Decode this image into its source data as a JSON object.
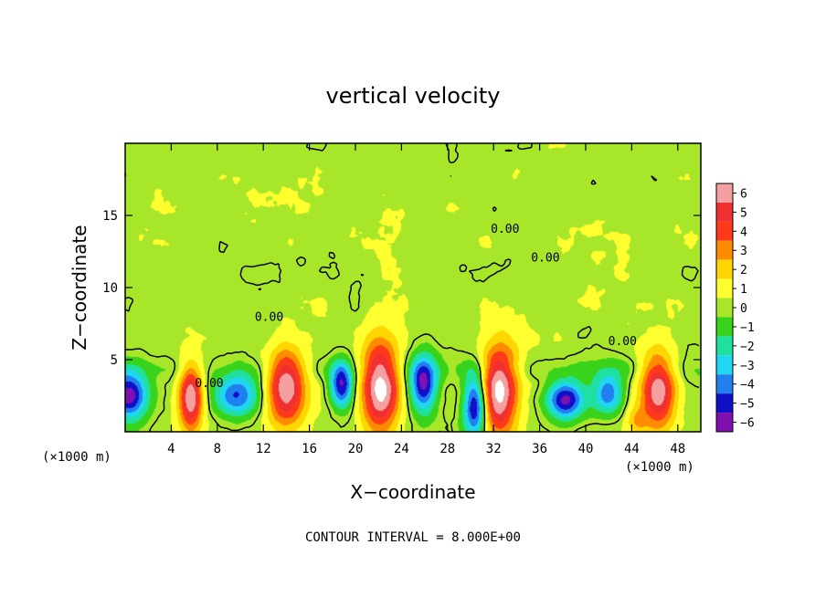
{
  "chart_data": {
    "type": "heatmap",
    "title": "vertical velocity",
    "xlabel": "X−coordinate",
    "ylabel": "Z−coordinate",
    "x_unit_left": "(×1000 m)",
    "x_unit_right": "(×1000 m)",
    "xlim": [
      0,
      50
    ],
    "ylim": [
      0,
      20
    ],
    "xticks": [
      4,
      8,
      12,
      16,
      20,
      24,
      28,
      32,
      36,
      40,
      44,
      48
    ],
    "xtick_labels": [
      "4",
      "8",
      "12",
      "16",
      "20",
      "24",
      "28",
      "32",
      "36",
      "40",
      "44",
      "48"
    ],
    "yticks": [
      5,
      10,
      15
    ],
    "ytick_labels": [
      "5",
      "10",
      "15"
    ],
    "colorbar": {
      "values": [
        6,
        5,
        4,
        3,
        2,
        1,
        0,
        -1,
        -2,
        -3,
        -4,
        -5,
        -6
      ],
      "labels": [
        "6",
        "5",
        "4",
        "3",
        "2",
        "1",
        "0",
        "−1",
        "−2",
        "−3",
        "−4",
        "−5",
        "−6"
      ],
      "colors": [
        "#f4a0a0",
        "#f03030",
        "#ff3a1a",
        "#ff8c00",
        "#ffd700",
        "#ffff30",
        "#a8e62a",
        "#39d31c",
        "#20e0a0",
        "#20d6f0",
        "#2080f0",
        "#1010c8",
        "#8010b0"
      ]
    },
    "contour_interval_text": "CONTOUR INTERVAL = 8.000E+00",
    "contour_labels": [
      {
        "x": 7.3,
        "z": 3.1,
        "text": "0.00"
      },
      {
        "x": 12.5,
        "z": 7.7,
        "text": "0.00"
      },
      {
        "x": 33.0,
        "z": 13.8,
        "text": "0.00"
      },
      {
        "x": 36.5,
        "z": 11.8,
        "text": "0.00"
      },
      {
        "x": 43.2,
        "z": 6.0,
        "text": "0.00"
      }
    ],
    "updrafts": [
      {
        "x": 5.7,
        "z": 2.4,
        "amp": 6.3,
        "sx": 1.0,
        "sz": 2.2
      },
      {
        "x": 14.0,
        "z": 3.1,
        "amp": 6.4,
        "sx": 1.6,
        "sz": 2.6
      },
      {
        "x": 22.2,
        "z": 3.2,
        "amp": 7.0,
        "sx": 1.6,
        "sz": 3.2
      },
      {
        "x": 32.5,
        "z": 2.9,
        "amp": 7.0,
        "sx": 1.6,
        "sz": 3.1
      },
      {
        "x": 46.3,
        "z": 2.8,
        "amp": 6.4,
        "sx": 1.5,
        "sz": 2.5
      },
      {
        "x": 44.5,
        "z": 0.8,
        "amp": 2.0,
        "sx": 0.9,
        "sz": 0.9
      }
    ],
    "downdrafts": [
      {
        "x": 0.3,
        "z": 2.5,
        "amp": 6.5,
        "sx": 1.6,
        "sz": 1.6
      },
      {
        "x": 9.7,
        "z": 2.5,
        "amp": 5.0,
        "sx": 2.0,
        "sz": 1.5
      },
      {
        "x": 18.8,
        "z": 3.2,
        "amp": 6.0,
        "sx": 1.0,
        "sz": 1.6
      },
      {
        "x": 25.9,
        "z": 3.3,
        "amp": 6.2,
        "sx": 1.2,
        "sz": 2.0
      },
      {
        "x": 30.4,
        "z": 1.8,
        "amp": 6.5,
        "sx": 1.0,
        "sz": 2.2
      },
      {
        "x": 38.2,
        "z": 2.2,
        "amp": 6.3,
        "sx": 1.6,
        "sz": 1.3
      },
      {
        "x": 42.0,
        "z": 2.6,
        "amp": 4.5,
        "sx": 1.3,
        "sz": 1.4
      }
    ]
  }
}
